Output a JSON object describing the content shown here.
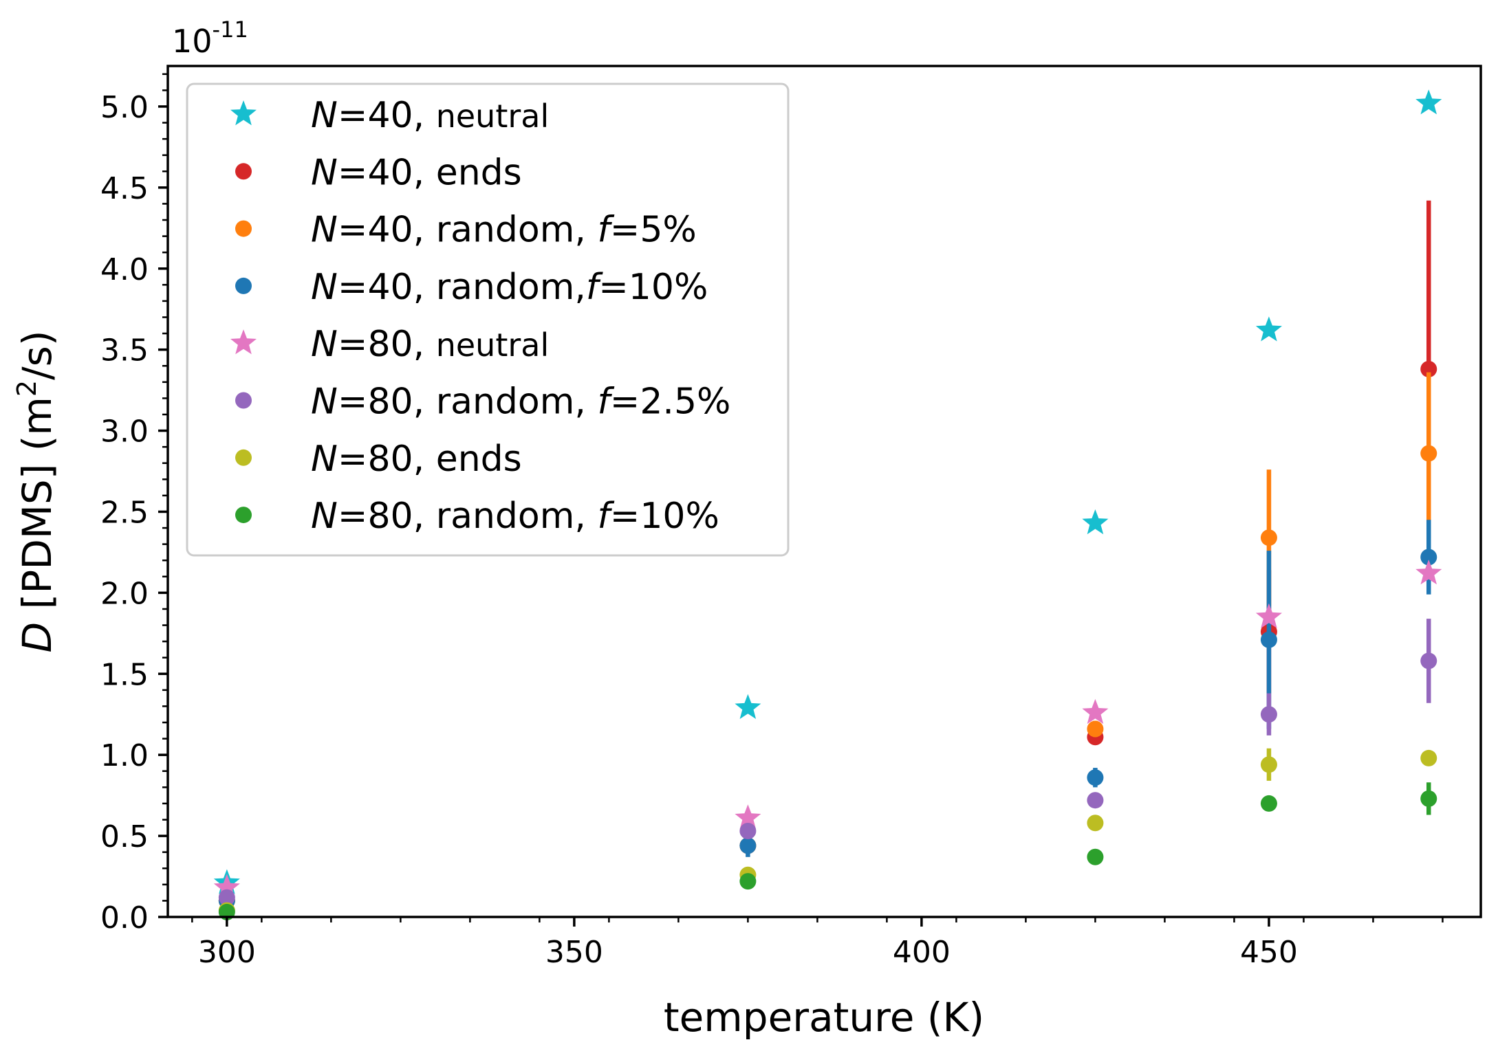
{
  "chart_data": {
    "type": "scatter",
    "xlabel": "temperature (K)",
    "ylabel_prefix": "D",
    "ylabel_main": " [PDMS] (m",
    "ylabel_sup": "2",
    "ylabel_suffix": "/s)",
    "offset_base": "10",
    "offset_exp": "-11",
    "xlim": [
      291.5,
      480.5
    ],
    "ylim": [
      0.0,
      5.25
    ],
    "xticks": [
      300,
      350,
      400,
      450
    ],
    "xtick_labels": [
      "300",
      "350",
      "400",
      "450"
    ],
    "yticks": [
      0.0,
      0.5,
      1.0,
      1.5,
      2.0,
      2.5,
      3.0,
      3.5,
      4.0,
      4.5,
      5.0
    ],
    "ytick_labels": [
      "0.0",
      "0.5",
      "1.0",
      "1.5",
      "2.0",
      "2.5",
      "3.0",
      "3.5",
      "4.0",
      "4.5",
      "5.0"
    ],
    "legend_position": "upper-left",
    "series": [
      {
        "id": "n40-neutral",
        "marker": "star",
        "color": "#17becf",
        "legend": {
          "n": "N",
          "rest": "=40, ",
          "small": "neutral",
          "f": "",
          "tail": ""
        },
        "points": [
          {
            "x": 300,
            "y": 0.21
          },
          {
            "x": 375,
            "y": 1.29
          },
          {
            "x": 425,
            "y": 2.43
          },
          {
            "x": 450,
            "y": 3.62
          },
          {
            "x": 473,
            "y": 5.02
          }
        ]
      },
      {
        "id": "n40-ends",
        "marker": "circle",
        "color": "#d62728",
        "legend": {
          "n": "N",
          "rest": "=40, ends",
          "small": "",
          "f": "",
          "tail": ""
        },
        "points": [
          {
            "x": 300,
            "y": 0.1
          },
          {
            "x": 375,
            "y": 0.44
          },
          {
            "x": 425,
            "y": 1.11
          },
          {
            "x": 450,
            "y": 1.76,
            "err": 0.38
          },
          {
            "x": 473,
            "y": 3.38,
            "err": 1.04
          }
        ]
      },
      {
        "id": "n40-random-5",
        "marker": "circle",
        "color": "#ff7f0e",
        "legend": {
          "n": "N",
          "rest": "=40, random, ",
          "small": "",
          "f": "f",
          "tail": "=5%"
        },
        "points": [
          {
            "x": 300,
            "y": 0.1
          },
          {
            "x": 375,
            "y": 0.44
          },
          {
            "x": 425,
            "y": 1.16,
            "err": 0.05
          },
          {
            "x": 450,
            "y": 2.34,
            "err": 0.42
          },
          {
            "x": 473,
            "y": 2.86,
            "err": 0.5
          }
        ]
      },
      {
        "id": "n40-random-10",
        "marker": "circle",
        "color": "#1f77b4",
        "legend": {
          "n": "N",
          "rest": "=40, random,",
          "small": "",
          "f": "f",
          "tail": "=10%"
        },
        "points": [
          {
            "x": 300,
            "y": 0.1
          },
          {
            "x": 375,
            "y": 0.44,
            "err": 0.07
          },
          {
            "x": 425,
            "y": 0.86,
            "err": 0.06
          },
          {
            "x": 450,
            "y": 1.71,
            "err": 0.55
          },
          {
            "x": 473,
            "y": 2.22,
            "err": 0.23
          }
        ]
      },
      {
        "id": "n80-neutral",
        "marker": "star",
        "color": "#e377c2",
        "legend": {
          "n": "N",
          "rest": "=80, ",
          "small": "neutral",
          "f": "",
          "tail": ""
        },
        "points": [
          {
            "x": 300,
            "y": 0.18
          },
          {
            "x": 375,
            "y": 0.61
          },
          {
            "x": 425,
            "y": 1.26
          },
          {
            "x": 450,
            "y": 1.85
          },
          {
            "x": 473,
            "y": 2.12
          }
        ]
      },
      {
        "id": "n80-random-2.5",
        "marker": "circle",
        "color": "#9467bd",
        "legend": {
          "n": "N",
          "rest": "=80, random, ",
          "small": "",
          "f": "f",
          "tail": "=2.5%"
        },
        "points": [
          {
            "x": 300,
            "y": 0.12
          },
          {
            "x": 375,
            "y": 0.53
          },
          {
            "x": 425,
            "y": 0.72
          },
          {
            "x": 450,
            "y": 1.25,
            "err": 0.13
          },
          {
            "x": 473,
            "y": 1.58,
            "err": 0.26
          }
        ]
      },
      {
        "id": "n80-ends",
        "marker": "circle",
        "color": "#bcbd22",
        "legend": {
          "n": "N",
          "rest": "=80, ends",
          "small": "",
          "f": "",
          "tail": ""
        },
        "points": [
          {
            "x": 300,
            "y": 0.04
          },
          {
            "x": 375,
            "y": 0.26
          },
          {
            "x": 425,
            "y": 0.58
          },
          {
            "x": 450,
            "y": 0.94,
            "err": 0.1
          },
          {
            "x": 473,
            "y": 0.98
          }
        ]
      },
      {
        "id": "n80-random-10",
        "marker": "circle",
        "color": "#2ca02c",
        "legend": {
          "n": "N",
          "rest": "=80, random, ",
          "small": "",
          "f": "f",
          "tail": "=10%"
        },
        "points": [
          {
            "x": 300,
            "y": 0.03
          },
          {
            "x": 375,
            "y": 0.22
          },
          {
            "x": 425,
            "y": 0.37
          },
          {
            "x": 450,
            "y": 0.7
          },
          {
            "x": 473,
            "y": 0.73,
            "err": 0.1
          }
        ]
      }
    ]
  }
}
